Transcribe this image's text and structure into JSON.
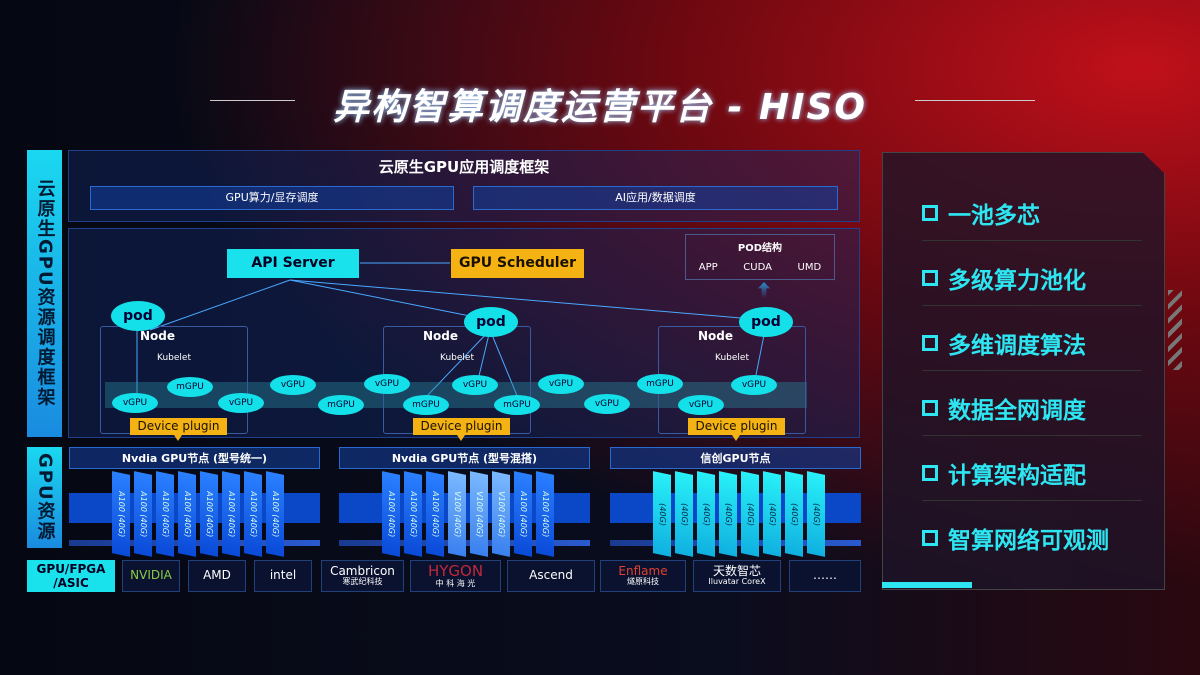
{
  "title": "异构智算调度运营平台 - HISO",
  "left_labels": {
    "framework": "云原生GPU资源调度框架",
    "resources": "GPU资源",
    "hardware": "GPU/FPGA /ASIC"
  },
  "top": {
    "heading": "云原生GPU应用调度框架",
    "bar1": "GPU算力/显存调度",
    "bar2": "AI应用/数据调度"
  },
  "diagram": {
    "api_server": "API Server",
    "gpu_scheduler": "GPU Scheduler",
    "pod_struct": {
      "title": "POD结构",
      "items": [
        "APP",
        "CUDA",
        "UMD"
      ]
    },
    "pod": "pod",
    "node": "Node",
    "kubelet": "Kubelet",
    "device_plugin": "Device plugin",
    "ellipses": [
      "vGPU",
      "mGPU",
      "vGPU",
      "vGPU",
      "mGPU",
      "vGPU",
      "mGPU",
      "vGPU",
      "mGPU",
      "vGPU",
      "vGPU",
      "mGPU",
      "vGPU",
      "vGPU"
    ]
  },
  "gpu_nodes": [
    {
      "title": "Nvdia GPU节点 (型号统一)",
      "chips": [
        "A100 (40G)",
        "A100 (40G)",
        "A100 (40G)",
        "A100 (40G)",
        "A100 (40G)",
        "A100 (40G)",
        "A100 (40G)",
        "A100 (40G)"
      ]
    },
    {
      "title": "Nvdia GPU节点 (型号混搭)",
      "chips": [
        "A100 (40G)",
        "A100 (40G)",
        "A100 (40G)",
        "V100 (40G)",
        "V100 (40G)",
        "V100 (40G)",
        "A100 (40G)",
        "A100 (40G)"
      ]
    },
    {
      "title": "信创GPU节点",
      "chips": [
        "(40G)",
        "(40G)",
        "(40G)",
        "(40G)",
        "(40G)",
        "(40G)",
        "(40G)",
        "(40G)"
      ]
    }
  ],
  "vendors": [
    {
      "name": "NVIDIA"
    },
    {
      "name": "AMD"
    },
    {
      "name": "intel"
    },
    {
      "name": "Cambricon",
      "sub": "寒武纪科技"
    },
    {
      "name": "HYGON",
      "sub": "中 科 海 光"
    },
    {
      "name": "Ascend"
    },
    {
      "name": "Enflame",
      "sub": "燧原科技"
    },
    {
      "name": "天数智芯",
      "sub": "Iluvatar CoreX"
    },
    {
      "name": "……"
    }
  ],
  "features": [
    "一池多芯",
    "多级算力池化",
    "多维调度算法",
    "数据全网调度",
    "计算架构适配",
    "智算网络可观测"
  ],
  "colors": {
    "cyan": "#19e2ec",
    "gold": "#f4b312",
    "blue": "#0a4ad8"
  }
}
